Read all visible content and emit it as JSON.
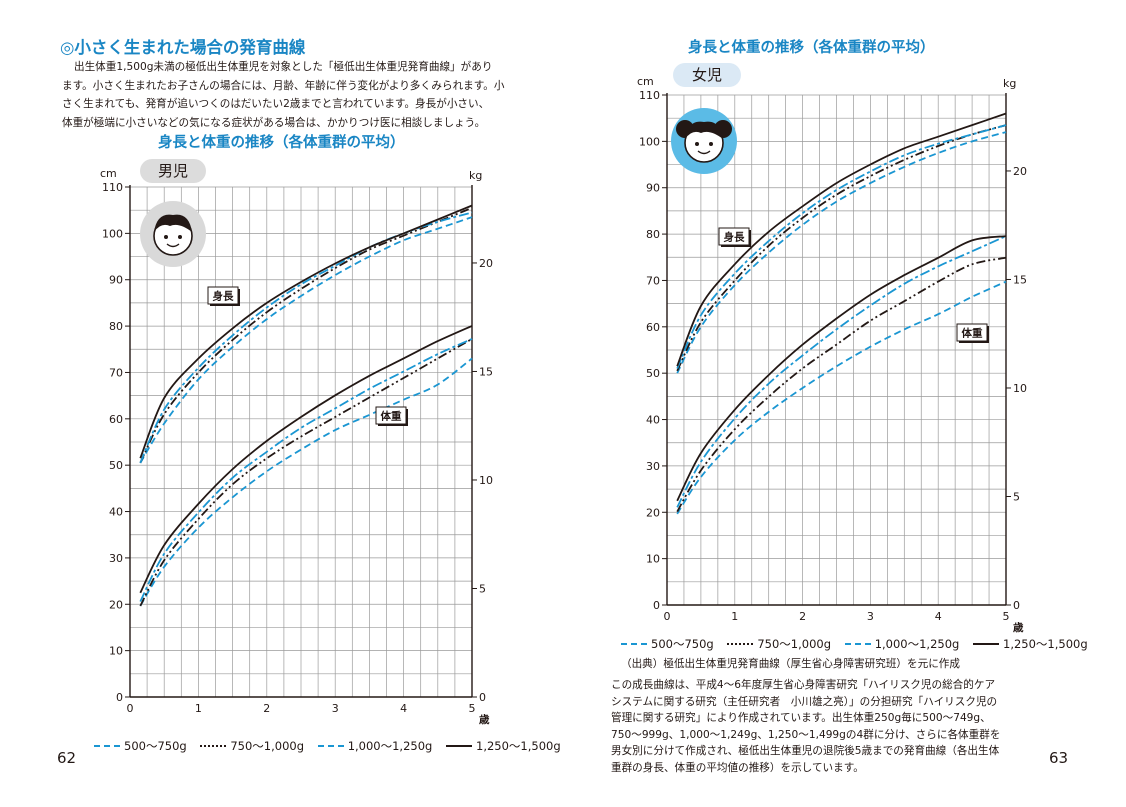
{
  "page": {
    "left_number": "62",
    "right_number": "63",
    "section_title": "◎小さく生まれた場合の発育曲線",
    "intro_lines": [
      "出生体重1,500g未満の極低出生体重児を対象とした「極低出生体重児発育曲線」があり",
      "ます。小さく生まれたお子さんの場合には、月齢、年齢に伴う変化がより多くみられます。小",
      "さく生まれても、発育が追いつくのはだいたい2歳までと言われています。身長が小さい、",
      "体重が極端に小さいなどの気になる症状がある場合は、かかりつけ医に相談しましょう。"
    ],
    "source": "（出典）極低出生体重児発育曲線（厚生省心身障害研究班）を元に作成",
    "note_lines": [
      "この成長曲線は、平成4〜6年度厚生省心身障害研究「ハイリスク児の総合的ケア",
      "システムに関する研究（主任研究者　小川雄之亮）」の分担研究「ハイリスク児の",
      "管理に関する研究」により作成されています。出生体重250g毎に500〜749g、",
      "750〜999g、1,000〜1,249g、1,250〜1,499gの4群に分け、さらに各体重群を",
      "男女別に分けて作成され、極低出生体重児の退院後5歳までの発育曲線（各出生体",
      "重群の身長、体重の平均値の推移）を示しています。"
    ]
  },
  "chart_data": [
    {
      "type": "line",
      "title": "身長と体重の推移（各体重群の平均）",
      "gender_label": "男児",
      "xlabel": "歳",
      "ylabel_left": "cm",
      "ylabel_right": "kg",
      "xlim": [
        0,
        5
      ],
      "ylim_left": [
        0,
        110
      ],
      "ylim_right": [
        0,
        23.5
      ],
      "x_ticks": [
        0,
        1,
        2,
        3,
        4,
        5
      ],
      "y_left_ticks": [
        0,
        10,
        20,
        30,
        40,
        50,
        60,
        70,
        80,
        90,
        100,
        110
      ],
      "y_right_ticks": [
        0,
        5,
        10,
        15,
        20
      ],
      "grid": true,
      "legend_position": "bottom",
      "annotations": {
        "height": "身長",
        "weight": "体重"
      },
      "x": [
        0.15,
        0.5,
        1,
        1.5,
        2,
        2.5,
        3,
        3.5,
        4,
        4.5,
        5
      ],
      "series": [
        {
          "name": "500〜750g",
          "style": "dashed",
          "color": "#1a96d2",
          "height_cm": [
            50.5,
            59,
            68.5,
            75.5,
            81.5,
            86.5,
            91,
            95,
            98.5,
            101,
            103.5
          ],
          "weight_kg": [
            4.2,
            6,
            7.8,
            9.2,
            10.4,
            11.4,
            12.3,
            13,
            13.7,
            14.4,
            15.6
          ]
        },
        {
          "name": "750〜1,000g",
          "style": "dashdotdot",
          "color": "#231815",
          "height_cm": [
            50.5,
            61,
            70,
            77,
            83,
            88,
            92.5,
            96.5,
            99.5,
            102.5,
            105.5
          ],
          "weight_kg": [
            4.2,
            6.3,
            8.2,
            9.8,
            11,
            12,
            12.9,
            13.8,
            14.7,
            15.6,
            16.5
          ]
        },
        {
          "name": "1,000〜1,250g",
          "style": "dashdot",
          "color": "#1a96d2",
          "height_cm": [
            50.5,
            62,
            71,
            78,
            84,
            89,
            93,
            97,
            100,
            102.5,
            104.5
          ],
          "weight_kg": [
            4.4,
            6.6,
            8.5,
            10.1,
            11.3,
            12.4,
            13.3,
            14.2,
            15.0,
            15.8,
            16.5
          ]
        },
        {
          "name": "1,250〜1,500g",
          "style": "solid",
          "color": "#231815",
          "height_cm": [
            51.5,
            64.5,
            73,
            79.5,
            85,
            89.5,
            93.5,
            97,
            100,
            103,
            106
          ],
          "weight_kg": [
            4.8,
            7,
            8.9,
            10.5,
            11.8,
            12.9,
            13.9,
            14.8,
            15.6,
            16.4,
            17.1
          ]
        }
      ]
    },
    {
      "type": "line",
      "title": "身長と体重の推移（各体重群の平均）",
      "gender_label": "女児",
      "xlabel": "歳",
      "ylabel_left": "cm",
      "ylabel_right": "kg",
      "xlim": [
        0,
        5
      ],
      "ylim_left": [
        0,
        110
      ],
      "ylim_right": [
        0,
        23.5
      ],
      "x_ticks": [
        0,
        1,
        2,
        3,
        4,
        5
      ],
      "y_left_ticks": [
        0,
        10,
        20,
        30,
        40,
        50,
        60,
        70,
        80,
        90,
        100,
        110
      ],
      "y_right_ticks": [
        0,
        5,
        10,
        15,
        20
      ],
      "grid": true,
      "legend_position": "bottom",
      "annotations": {
        "height": "身長",
        "weight": "体重"
      },
      "x": [
        0.15,
        0.5,
        1,
        1.5,
        2,
        2.5,
        3,
        3.5,
        4,
        4.5,
        5
      ],
      "series": [
        {
          "name": "500〜750g",
          "style": "dashed",
          "color": "#1a96d2",
          "height_cm": [
            50,
            60,
            69,
            76,
            82,
            87,
            91,
            94.5,
            97.5,
            100,
            102
          ],
          "weight_kg": [
            4.2,
            5.9,
            7.6,
            8.9,
            10,
            11,
            11.9,
            12.7,
            13.4,
            14.2,
            14.9
          ]
        },
        {
          "name": "750〜1,000g",
          "style": "dashdotdot",
          "color": "#231815",
          "height_cm": [
            50.5,
            61,
            70,
            77.5,
            83.5,
            88.5,
            92.5,
            96,
            99,
            101.5,
            103.5
          ],
          "weight_kg": [
            4.3,
            6.2,
            8.1,
            9.6,
            10.9,
            12,
            13.1,
            14,
            14.9,
            15.7,
            16
          ]
        },
        {
          "name": "1,000〜1,250g",
          "style": "dashdot",
          "color": "#1a96d2",
          "height_cm": [
            51,
            62.5,
            71.5,
            78.5,
            84.5,
            89.5,
            93.5,
            97,
            99.5,
            101.5,
            103.5
          ],
          "weight_kg": [
            4.5,
            6.6,
            8.6,
            10.2,
            11.5,
            12.7,
            13.8,
            14.8,
            15.6,
            16.3,
            17
          ]
        },
        {
          "name": "1,250〜1,500g",
          "style": "solid",
          "color": "#231815",
          "height_cm": [
            51.5,
            64.5,
            73.5,
            80.5,
            86,
            91,
            95,
            98.5,
            101,
            103.5,
            106
          ],
          "weight_kg": [
            4.8,
            7,
            9,
            10.6,
            12,
            13.2,
            14.3,
            15.2,
            16,
            16.8,
            17
          ]
        }
      ]
    }
  ]
}
